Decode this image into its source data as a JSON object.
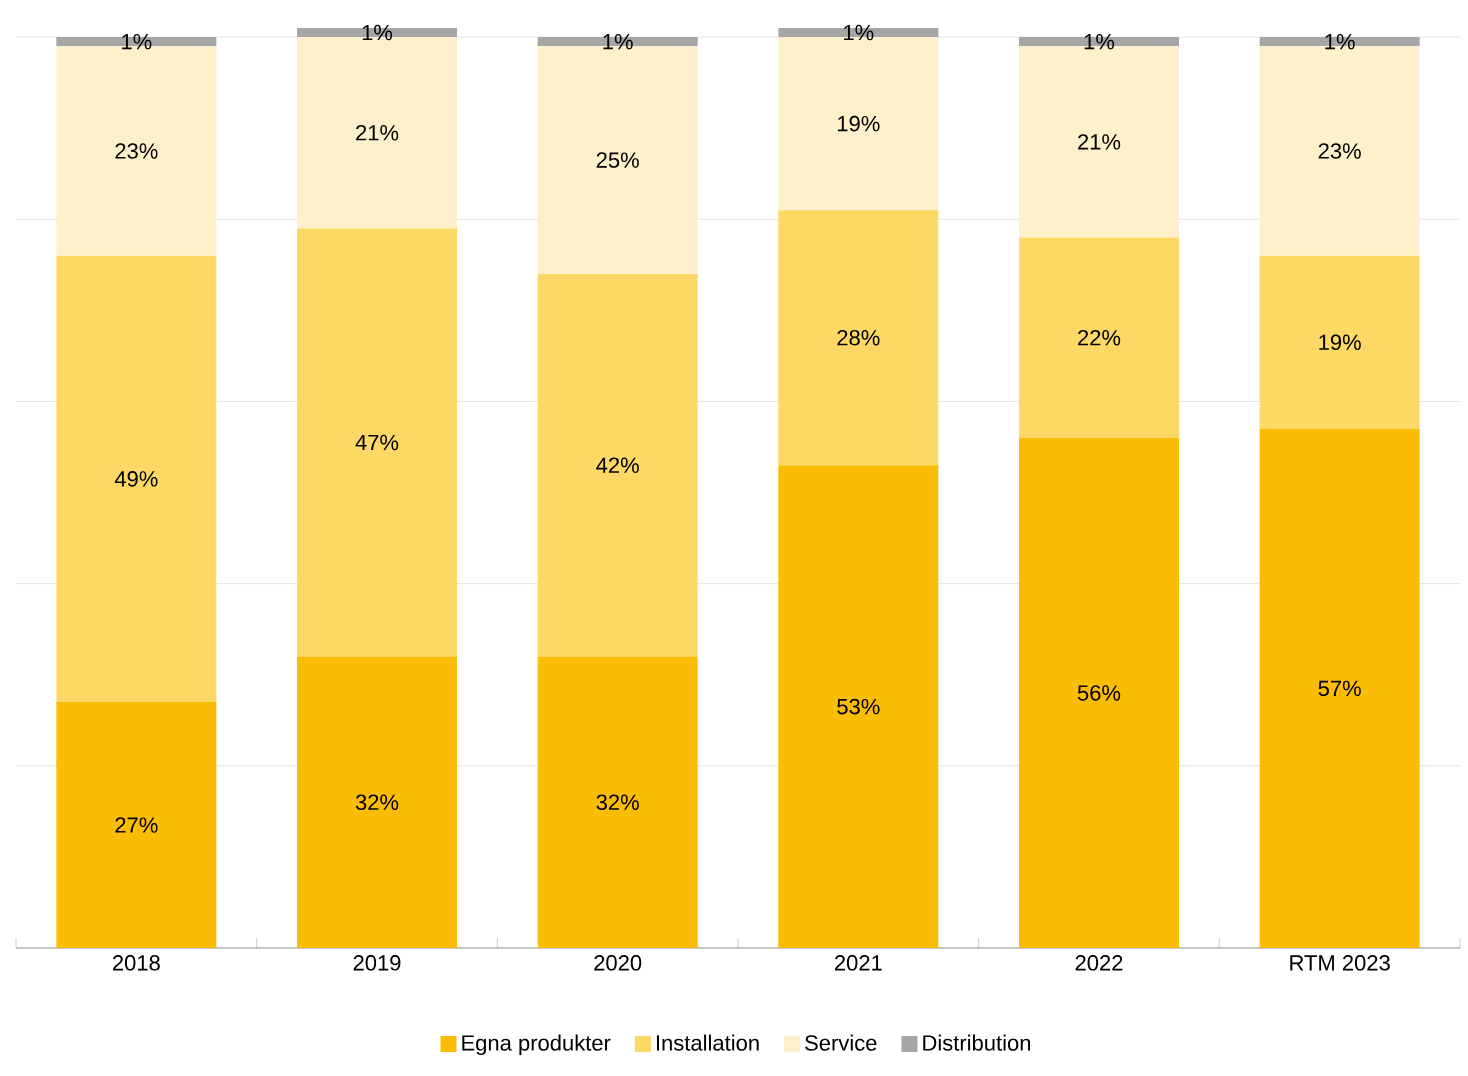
{
  "chart_data": {
    "type": "bar",
    "stacked": true,
    "categories": [
      "2018",
      "2019",
      "2020",
      "2021",
      "2022",
      "RTM 2023"
    ],
    "ylim": [
      0,
      101
    ],
    "yticks": [
      {
        "value": 0,
        "label": null
      },
      {
        "value": 20,
        "label": null
      },
      {
        "value": 40,
        "label": null
      },
      {
        "value": 60,
        "label": null
      },
      {
        "value": 80,
        "label": null
      },
      {
        "value": 100,
        "label": null
      }
    ],
    "grid": "y",
    "legend": "bottom",
    "tick_labels": "x",
    "series": [
      {
        "name": "Egna produkter",
        "color": "#fbbc05",
        "values": [
          27,
          32,
          32,
          53,
          56,
          57
        ],
        "value_labels": [
          "27%",
          "32%",
          "32%",
          "53%",
          "56%",
          "57%"
        ]
      },
      {
        "name": "Installation",
        "color": "#fdd865",
        "values": [
          49,
          47,
          42,
          28,
          22,
          19
        ],
        "value_labels": [
          "49%",
          "47%",
          "42%",
          "28%",
          "22%",
          "19%"
        ]
      },
      {
        "name": "Service",
        "color": "#fef0cb",
        "values": [
          23,
          21,
          25,
          19,
          21,
          23
        ],
        "value_labels": [
          "23%",
          "21%",
          "25%",
          "19%",
          "21%",
          "23%"
        ]
      },
      {
        "name": "Distribution",
        "color": "#a6a6a6",
        "values": [
          1,
          1,
          1,
          1,
          1,
          1
        ],
        "value_labels": [
          "1%",
          "1%",
          "1%",
          "1%",
          "1%",
          "1%"
        ]
      }
    ]
  }
}
